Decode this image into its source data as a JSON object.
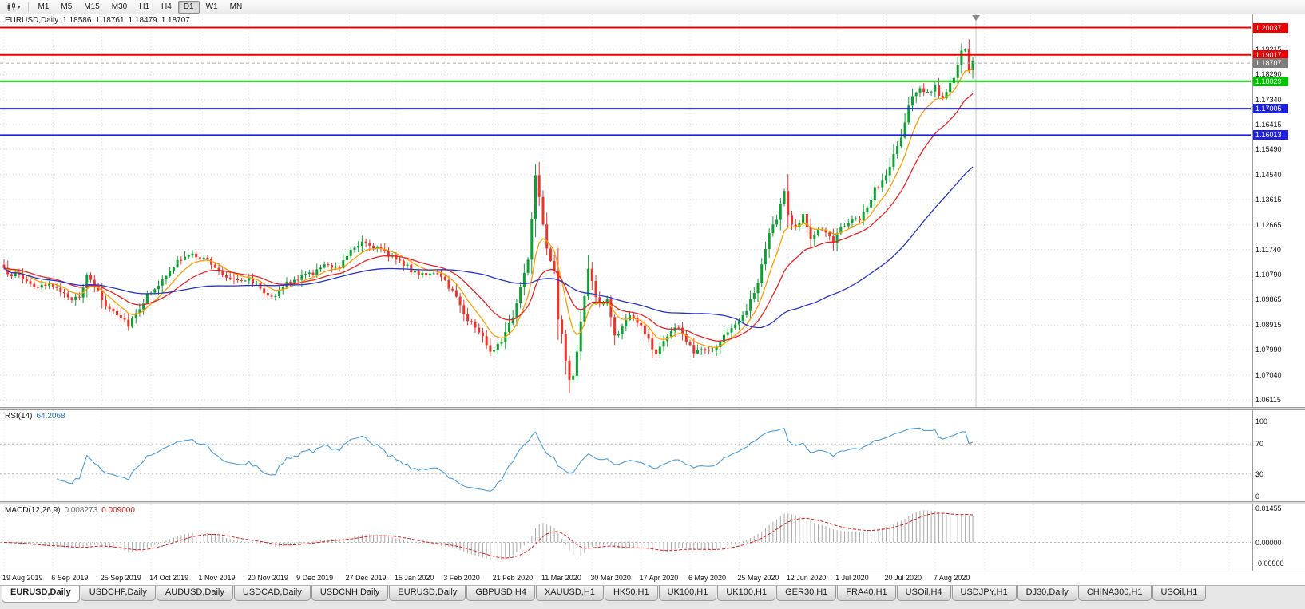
{
  "toolbar": {
    "buttons": [
      {
        "label": "M1"
      },
      {
        "label": "M5"
      },
      {
        "label": "M15"
      },
      {
        "label": "M30"
      },
      {
        "label": "H1"
      },
      {
        "label": "H4"
      },
      {
        "label": "D1"
      },
      {
        "label": "W1"
      },
      {
        "label": "MN"
      }
    ],
    "active": "D1",
    "chart_icon_caret": "▾"
  },
  "legend": {
    "symbol": "EURUSD,Daily",
    "open": "1.18586",
    "high": "1.18761",
    "low": "1.18479",
    "close": "1.18707"
  },
  "rsi_panel": {
    "name": "RSI(14)",
    "value": "64.2068"
  },
  "macd_panel": {
    "name": "MACD(12,26,9)",
    "value_main": "0.008273",
    "value_signal": "0.009000"
  },
  "tabs": {
    "items": [
      "EURUSD,Daily",
      "USDCHF,Daily",
      "AUDUSD,Daily",
      "USDCAD,Daily",
      "USDCNH,Daily",
      "EURUSD,Daily",
      "GBPUSD,H4",
      "XAUUSD,H1",
      "HK50,H1",
      "UK100,H1",
      "UK100,H1",
      "GER30,H1",
      "FRA40,H1",
      "USOil,H4",
      "USDJPY,H1",
      "DJ30,Daily",
      "CHINA300,H1",
      "USOil,H1"
    ],
    "active_index": 0
  },
  "chart_data": {
    "type": "candlestick",
    "title": "EURUSD,Daily",
    "x_labels": [
      "19 Aug 2019",
      "6 Sep 2019",
      "25 Sep 2019",
      "14 Oct 2019",
      "1 Nov 2019",
      "20 Nov 2019",
      "9 Dec 2019",
      "27 Dec 2019",
      "15 Jan 2020",
      "3 Feb 2020",
      "21 Feb 2020",
      "11 Mar 2020",
      "30 Mar 2020",
      "17 Apr 2020",
      "6 May 2020",
      "25 May 2020",
      "12 Jun 2020",
      "1 Jul 2020",
      "20 Jul 2020",
      "7 Aug 2020"
    ],
    "candles_per_label": 13,
    "num_candles": 258,
    "y_range": [
      1.0585,
      1.2053
    ],
    "y_ticks": [
      "1.19215",
      "1.18290",
      "1.17340",
      "1.16415",
      "1.15490",
      "1.14540",
      "1.13615",
      "1.12665",
      "1.11740",
      "1.10790",
      "1.09865",
      "1.08915",
      "1.07990",
      "1.07040",
      "1.06115"
    ],
    "h_lines": [
      {
        "price": 1.20037,
        "label": "1.20037",
        "color": "#ee0000",
        "width": 2,
        "style": "solid"
      },
      {
        "price": 1.19017,
        "label": "1.19017",
        "color": "#ee0000",
        "width": 2,
        "style": "solid"
      },
      {
        "price": 1.18707,
        "label": "1.18707",
        "color": "#7d7d7d",
        "width": 1,
        "style": "current"
      },
      {
        "price": 1.18029,
        "label": "1.18029",
        "color": "#00c400",
        "width": 2,
        "style": "solid"
      },
      {
        "price": 1.17005,
        "label": "1.17005",
        "color": "#2020dd",
        "width": 2,
        "style": "solid"
      },
      {
        "price": 1.16013,
        "label": "1.16013",
        "color": "#2020dd",
        "width": 2,
        "style": "solid"
      }
    ],
    "current_price": 1.18707,
    "up_color": "#0ca232",
    "down_color": "#e8362d",
    "ma_lines": [
      {
        "name": "ma-fast",
        "type": "ema",
        "period": 8,
        "color": "#ff9c00"
      },
      {
        "name": "ma-medium",
        "type": "ema",
        "period": 20,
        "color": "#ee2222"
      },
      {
        "name": "ma-slow",
        "type": "sma",
        "period": 55,
        "color": "#2633cc"
      }
    ],
    "price_anchors": [
      [
        0,
        1.1095
      ],
      [
        4,
        1.1075
      ],
      [
        9,
        1.103
      ],
      [
        14,
        1.104
      ],
      [
        17,
        1.0985
      ],
      [
        20,
        1.1005
      ],
      [
        22,
        1.107
      ],
      [
        24,
        1.104
      ],
      [
        27,
        1.0962
      ],
      [
        30,
        1.0938
      ],
      [
        33,
        1.0896
      ],
      [
        36,
        1.0958
      ],
      [
        39,
        1.1022
      ],
      [
        43,
        1.1068
      ],
      [
        46,
        1.1132
      ],
      [
        50,
        1.1152
      ],
      [
        53,
        1.1148
      ],
      [
        56,
        1.1102
      ],
      [
        59,
        1.1072
      ],
      [
        63,
        1.1066
      ],
      [
        66,
        1.1058
      ],
      [
        69,
        1.1014
      ],
      [
        72,
        1.1006
      ],
      [
        75,
        1.1046
      ],
      [
        79,
        1.1072
      ],
      [
        83,
        1.1096
      ],
      [
        86,
        1.1118
      ],
      [
        89,
        1.1112
      ],
      [
        92,
        1.1176
      ],
      [
        95,
        1.1208
      ],
      [
        98,
        1.1188
      ],
      [
        101,
        1.1158
      ],
      [
        104,
        1.1146
      ],
      [
        108,
        1.1094
      ],
      [
        112,
        1.1086
      ],
      [
        115,
        1.1074
      ],
      [
        117,
        1.1058
      ],
      [
        120,
        1.0998
      ],
      [
        123,
        1.0912
      ],
      [
        126,
        1.0868
      ],
      [
        129,
        1.0798
      ],
      [
        131,
        1.0822
      ],
      [
        133,
        1.0858
      ],
      [
        135,
        1.0924
      ],
      [
        137,
        1.1034
      ],
      [
        139,
        1.114
      ],
      [
        141,
        1.1452
      ],
      [
        142,
        1.1378
      ],
      [
        143,
        1.1278
      ],
      [
        144,
        1.118
      ],
      [
        146,
        1.1096
      ],
      [
        147,
        1.0918
      ],
      [
        148,
        1.0848
      ],
      [
        150,
        1.0678
      ],
      [
        151,
        1.0704
      ],
      [
        152,
        1.0802
      ],
      [
        153,
        1.0898
      ],
      [
        155,
        1.1098
      ],
      [
        156,
        1.1048
      ],
      [
        158,
        1.0962
      ],
      [
        160,
        1.0988
      ],
      [
        162,
        1.0852
      ],
      [
        164,
        1.0882
      ],
      [
        166,
        1.0928
      ],
      [
        168,
        1.0902
      ],
      [
        170,
        1.0862
      ],
      [
        173,
        1.0782
      ],
      [
        175,
        1.0838
      ],
      [
        177,
        1.0868
      ],
      [
        179,
        1.0888
      ],
      [
        181,
        1.0828
      ],
      [
        183,
        1.0792
      ],
      [
        185,
        1.0812
      ],
      [
        187,
        1.0798
      ],
      [
        189,
        1.0818
      ],
      [
        191,
        1.0848
      ],
      [
        193,
        1.0888
      ],
      [
        195,
        1.0902
      ],
      [
        197,
        1.0952
      ],
      [
        199,
        1.1008
      ],
      [
        201,
        1.1112
      ],
      [
        203,
        1.1232
      ],
      [
        205,
        1.1288
      ],
      [
        207,
        1.1388
      ],
      [
        208,
        1.1302
      ],
      [
        210,
        1.1252
      ],
      [
        212,
        1.1304
      ],
      [
        214,
        1.1206
      ],
      [
        216,
        1.1252
      ],
      [
        218,
        1.1228
      ],
      [
        220,
        1.1198
      ],
      [
        221,
        1.1244
      ],
      [
        223,
        1.1272
      ],
      [
        225,
        1.1288
      ],
      [
        227,
        1.1278
      ],
      [
        229,
        1.1328
      ],
      [
        231,
        1.1398
      ],
      [
        233,
        1.1428
      ],
      [
        234,
        1.1446
      ],
      [
        236,
        1.1528
      ],
      [
        238,
        1.1588
      ],
      [
        240,
        1.1708
      ],
      [
        242,
        1.1768
      ],
      [
        243,
        1.1782
      ],
      [
        245,
        1.1758
      ],
      [
        247,
        1.1786
      ],
      [
        249,
        1.1728
      ],
      [
        251,
        1.1786
      ],
      [
        253,
        1.1858
      ],
      [
        254,
        1.1928
      ],
      [
        255,
        1.1912
      ],
      [
        256,
        1.1842
      ],
      [
        257,
        1.1871
      ]
    ],
    "rsi": {
      "period": 14,
      "color": "#4a9ede",
      "levels": [
        70,
        30
      ],
      "ticks": [
        "100",
        "70",
        "30",
        "0"
      ],
      "range": [
        0,
        100
      ]
    },
    "macd": {
      "fast": 12,
      "slow": 26,
      "signal": 9,
      "hist_color": "#a8a8a8",
      "signal_color": "#dd1c1c",
      "ticks": [
        "0.01455",
        "0.00000",
        "-0.00900"
      ],
      "range": [
        -0.0105,
        0.015
      ]
    }
  }
}
